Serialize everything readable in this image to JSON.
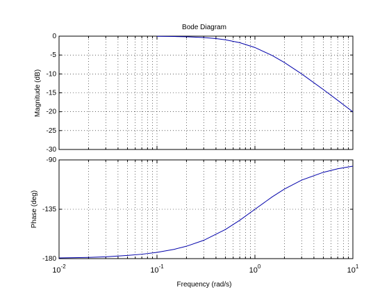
{
  "chart_data": {
    "type": "line",
    "title": "Bode Diagram",
    "xlabel": "Frequency  (rad/s)",
    "xscale": "log",
    "xlim": [
      0.01,
      10
    ],
    "x_ticks": [
      {
        "value": 0.01,
        "base": "10",
        "exp": "-2"
      },
      {
        "value": 0.1,
        "base": "10",
        "exp": "-1"
      },
      {
        "value": 1,
        "base": "10",
        "exp": "0"
      },
      {
        "value": 10,
        "base": "10",
        "exp": "1"
      }
    ],
    "grid": true,
    "line_color": "#0000aa",
    "panels": [
      {
        "name": "magnitude",
        "ylabel": "Magnitude (dB)",
        "ylim": [
          -30,
          0
        ],
        "yticks": [
          "0",
          "-5",
          "-10",
          "-15",
          "-20",
          "-25",
          "-30"
        ],
        "ytick_values": [
          0,
          -5,
          -10,
          -15,
          -20,
          -25,
          -30
        ],
        "series": [
          {
            "x": [
              0.1,
              0.15,
              0.2,
              0.25,
              0.3,
              0.4,
              0.5,
              0.7,
              1,
              1.5,
              2,
              3,
              5,
              7,
              10
            ],
            "y": [
              -0.04,
              -0.1,
              -0.17,
              -0.27,
              -0.37,
              -0.64,
              -0.97,
              -1.73,
              -3.01,
              -5.12,
              -6.99,
              -10.0,
              -14.15,
              -16.99,
              -20.04
            ]
          }
        ]
      },
      {
        "name": "phase",
        "ylabel": "Phase (deg)",
        "ylim": [
          -180,
          -90
        ],
        "yticks": [
          "-90",
          "-135",
          "-180"
        ],
        "ytick_values": [
          -90,
          -135,
          -180
        ],
        "series": [
          {
            "x": [
              0.01,
              0.02,
              0.03,
              0.05,
              0.07,
              0.1,
              0.15,
              0.2,
              0.3,
              0.5,
              0.7,
              1,
              1.5,
              2,
              3,
              5,
              7,
              10
            ],
            "y": [
              -179.4,
              -178.9,
              -178.3,
              -177.1,
              -176.0,
              -174.3,
              -171.5,
              -168.7,
              -163.3,
              -153.4,
              -145.0,
              -135.0,
              -123.7,
              -116.6,
              -108.4,
              -101.3,
              -98.1,
              -95.7
            ]
          }
        ]
      }
    ]
  }
}
